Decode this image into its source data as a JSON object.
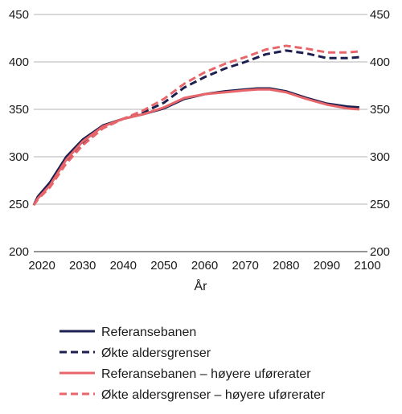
{
  "chart_data": {
    "type": "line",
    "title": "",
    "xlabel": "År",
    "ylabel": "",
    "xlim": [
      2018,
      2100
    ],
    "ylim": [
      200,
      450
    ],
    "x_ticks": [
      2020,
      2030,
      2040,
      2050,
      2060,
      2070,
      2080,
      2090,
      2100
    ],
    "y_ticks": [
      200,
      250,
      300,
      350,
      400,
      450
    ],
    "y_axis_both_sides": true,
    "grid": "horizontal",
    "legend_position": "bottom",
    "series": [
      {
        "name": "Referansebanen",
        "color": "#1c1f4f",
        "style": "solid",
        "x": [
          2018,
          2019,
          2022,
          2026,
          2030,
          2035,
          2040,
          2045,
          2050,
          2055,
          2060,
          2065,
          2070,
          2073,
          2076,
          2080,
          2085,
          2090,
          2095,
          2098
        ],
        "y": [
          249,
          258,
          273,
          300,
          318,
          333,
          340,
          345,
          351,
          361,
          366,
          369,
          371,
          372,
          372,
          369,
          362,
          356,
          353,
          352
        ]
      },
      {
        "name": "Økte aldersgrenser",
        "color": "#1c1f4f",
        "style": "dashed",
        "x": [
          2018,
          2019,
          2022,
          2026,
          2030,
          2035,
          2040,
          2045,
          2050,
          2055,
          2060,
          2065,
          2070,
          2075,
          2080,
          2085,
          2090,
          2095,
          2098
        ],
        "y": [
          249,
          257,
          270,
          295,
          313,
          331,
          340,
          347,
          357,
          373,
          384,
          393,
          400,
          408,
          412,
          409,
          404,
          404,
          405
        ]
      },
      {
        "name": "Referansebanen – høyere uførerater",
        "color": "#e8666a",
        "style": "solid",
        "x": [
          2018,
          2019,
          2022,
          2026,
          2030,
          2035,
          2040,
          2045,
          2050,
          2055,
          2060,
          2065,
          2070,
          2073,
          2076,
          2080,
          2085,
          2090,
          2095,
          2098
        ],
        "y": [
          249,
          256,
          270,
          297,
          316,
          332,
          340,
          345,
          352,
          362,
          366,
          368,
          370,
          371,
          371,
          368,
          361,
          355,
          351,
          350
        ]
      },
      {
        "name": "Økte aldersgrenser – høyere uførerater",
        "color": "#e8666a",
        "style": "dashed",
        "x": [
          2018,
          2019,
          2022,
          2026,
          2030,
          2035,
          2040,
          2045,
          2050,
          2055,
          2060,
          2065,
          2070,
          2075,
          2080,
          2085,
          2090,
          2095,
          2098
        ],
        "y": [
          249,
          255,
          268,
          293,
          312,
          330,
          340,
          349,
          361,
          377,
          389,
          398,
          405,
          413,
          417,
          414,
          410,
          410,
          411
        ]
      }
    ]
  }
}
